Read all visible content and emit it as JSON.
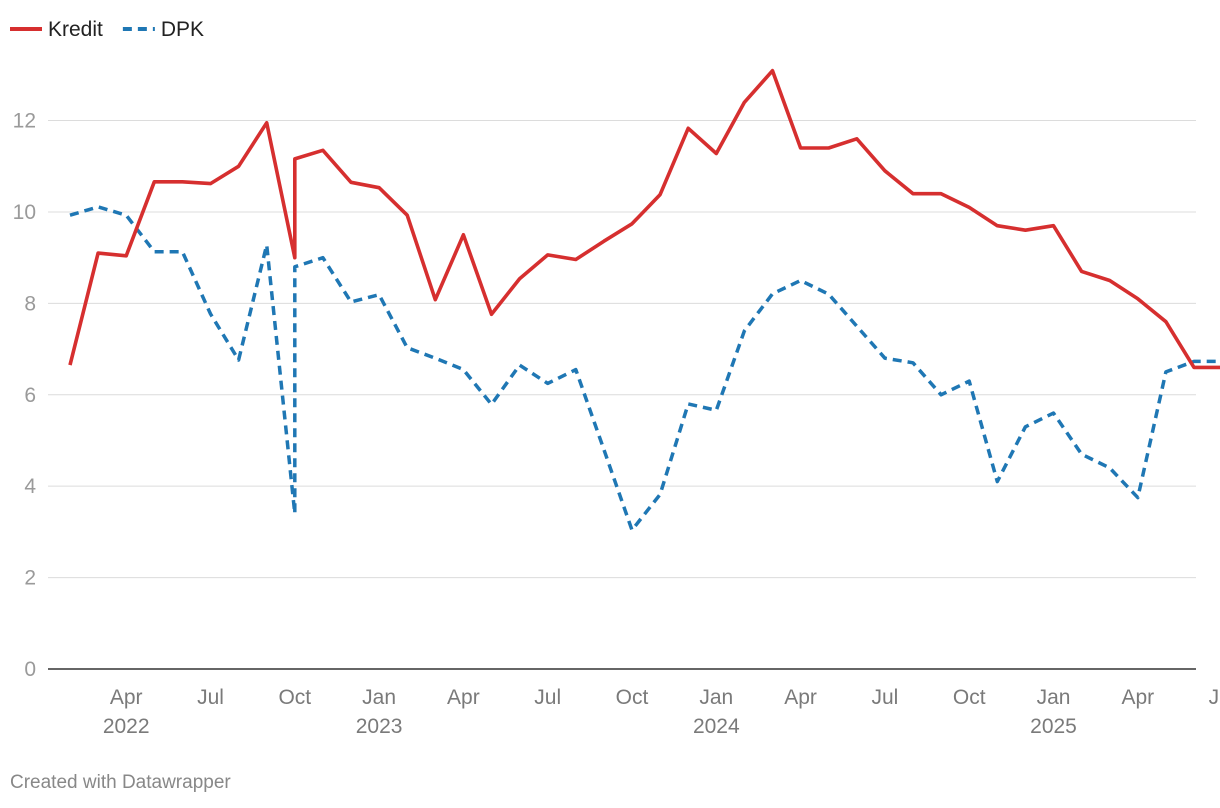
{
  "footer": {
    "credit": "Created with Datawrapper"
  },
  "chart_data": {
    "type": "line",
    "legend_position": "top-left",
    "grid": true,
    "ylim": [
      0,
      13.5
    ],
    "y_ticks": [
      "0",
      "2",
      "4",
      "6",
      "8",
      "10",
      "12"
    ],
    "x_ticks": [
      {
        "x": "2022-04",
        "label": "Apr",
        "sub": "2022"
      },
      {
        "x": "2022-07",
        "label": "Jul"
      },
      {
        "x": "2022-10",
        "label": "Oct"
      },
      {
        "x": "2023-01",
        "label": "Jan",
        "sub": "2023"
      },
      {
        "x": "2023-04",
        "label": "Apr"
      },
      {
        "x": "2023-07",
        "label": "Jul"
      },
      {
        "x": "2023-10",
        "label": "Oct"
      },
      {
        "x": "2024-01",
        "label": "Jan",
        "sub": "2024"
      },
      {
        "x": "2024-04",
        "label": "Apr"
      },
      {
        "x": "2024-07",
        "label": "Jul"
      },
      {
        "x": "2024-10",
        "label": "Oct"
      },
      {
        "x": "2025-01",
        "label": "Jan",
        "sub": "2025"
      },
      {
        "x": "2025-04",
        "label": "Apr"
      },
      {
        "x": "2025-07",
        "label": "Jul"
      }
    ],
    "x": [
      "2022-02",
      "2022-03",
      "2022-04",
      "2022-05",
      "2022-06",
      "2022-07",
      "2022-08",
      "2022-09",
      "2022-10",
      "2022-10",
      "2022-11",
      "2022-12",
      "2023-01",
      "2023-02",
      "2023-03",
      "2023-04",
      "2023-05",
      "2023-06",
      "2023-07",
      "2023-08",
      "2023-09",
      "2023-10",
      "2023-11",
      "2023-12",
      "2024-01",
      "2024-02",
      "2024-03",
      "2024-04",
      "2024-05",
      "2024-06",
      "2024-07",
      "2024-08",
      "2024-09",
      "2024-10",
      "2024-11",
      "2024-12",
      "2025-01",
      "2025-02",
      "2025-03",
      "2025-04",
      "2025-05",
      "2025-06",
      "2025-07"
    ],
    "series": [
      {
        "name": "Kredit",
        "color": "#d62f2f",
        "style": "solid",
        "values": [
          6.65,
          9.1,
          9.04,
          10.66,
          10.66,
          10.62,
          11.0,
          11.95,
          9.0,
          11.16,
          11.35,
          10.65,
          10.53,
          9.93,
          8.08,
          9.5,
          7.76,
          8.54,
          9.06,
          8.96,
          9.36,
          9.74,
          10.38,
          11.83,
          11.28,
          12.4,
          13.09,
          11.4,
          11.4,
          11.6,
          10.9,
          10.4,
          10.4,
          10.1,
          9.7,
          9.6,
          9.7,
          8.7,
          8.5,
          8.1,
          7.6,
          6.6,
          6.6
        ]
      },
      {
        "name": "DPK",
        "color": "#1f77b4",
        "style": "dashed",
        "values": [
          9.93,
          10.11,
          9.93,
          9.13,
          9.13,
          7.77,
          6.76,
          9.28,
          3.4,
          8.8,
          9.0,
          8.03,
          8.19,
          7.03,
          6.8,
          6.55,
          5.79,
          6.65,
          6.25,
          6.55,
          4.8,
          3.04,
          3.82,
          5.8,
          5.66,
          7.4,
          8.21,
          8.5,
          8.2,
          7.5,
          6.8,
          6.7,
          6.0,
          6.3,
          4.1,
          5.3,
          5.6,
          4.7,
          4.4,
          3.75,
          6.5,
          6.73,
          6.73
        ]
      }
    ]
  }
}
